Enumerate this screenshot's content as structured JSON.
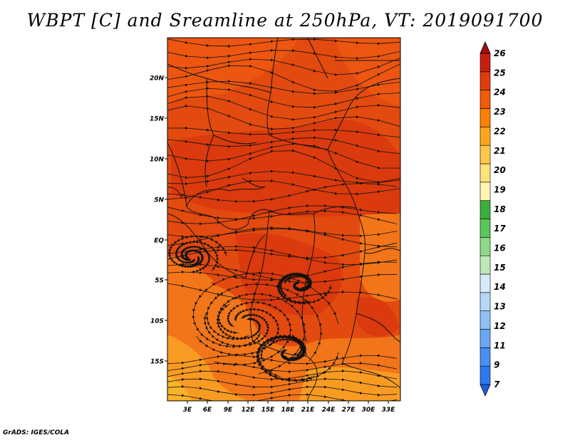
{
  "title": "WBPT [C] and Sreamline at 250hPa, VT: 2019091700",
  "footer": "GrADS: IGES/COLA",
  "map": {
    "lat_labels": [
      "20N",
      "15N",
      "10N",
      "5N",
      "EQ",
      "5S",
      "10S",
      "15S"
    ],
    "lon_labels": [
      "3E",
      "6E",
      "9E",
      "12E",
      "15E",
      "18E",
      "21E",
      "24E",
      "27E",
      "30E",
      "33E"
    ]
  },
  "colorbar": {
    "levels": [
      "7",
      "9",
      "11",
      "12",
      "13",
      "14",
      "15",
      "16",
      "17",
      "18",
      "19",
      "20",
      "21",
      "22",
      "23",
      "24",
      "25",
      "26"
    ],
    "colors": [
      "#1f5fe0",
      "#2f78ee",
      "#4a90f2",
      "#6aa8f4",
      "#8fc0f6",
      "#b4d7f9",
      "#d6ecfb",
      "#bfe8b8",
      "#8ed88a",
      "#5bc65a",
      "#3aae3f",
      "#fff5b0",
      "#ffe27a",
      "#ffc84a",
      "#ffa51c",
      "#ff7f00",
      "#f25a08",
      "#e03c0c",
      "#c81e0e",
      "#a20f0c"
    ]
  },
  "field_colors": {
    "deep": "#da3a0d",
    "mid": "#ec5611",
    "light": "#f27519",
    "pale": "#f99b23",
    "orange": "#f9b329"
  }
}
